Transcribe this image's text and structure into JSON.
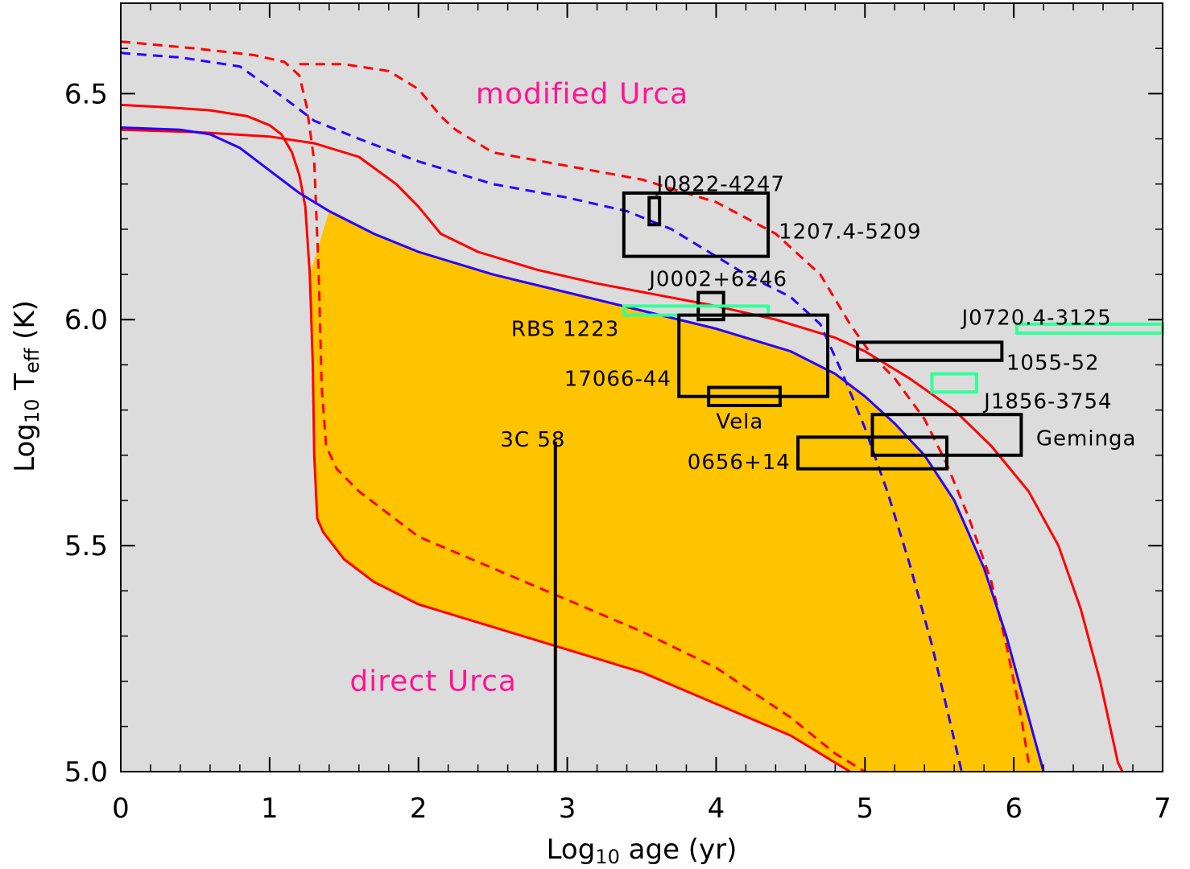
{
  "chart_data": {
    "type": "line",
    "xlabel": "Log10 age (yr)",
    "ylabel": "Log10 Teff (K)",
    "xlim": [
      0,
      7
    ],
    "ylim": [
      5.0,
      6.7
    ],
    "x_ticks": [
      0,
      1,
      2,
      3,
      4,
      5,
      6,
      7
    ],
    "y_ticks": [
      5.0,
      5.5,
      6.0,
      6.5
    ],
    "x_tick_labels": [
      "0",
      "1",
      "2",
      "3",
      "4",
      "5",
      "6",
      "7"
    ],
    "y_tick_labels": [
      "5.0",
      "5.5",
      "6.0",
      "6.5"
    ],
    "grid": false,
    "colors": {
      "background": "#dcdcdc",
      "fill": "#ffc400",
      "red": "#ff0000",
      "blue": "#2a00ff",
      "green": "#33ff99",
      "magenta": "#ff1493",
      "black": "#000000"
    },
    "annotations": [
      {
        "text": "modified Urca",
        "x": 3.1,
        "y": 6.5
      },
      {
        "text": "direct Urca",
        "x": 2.1,
        "y": 5.2
      }
    ],
    "curves": [
      {
        "color": "red",
        "style": "solid",
        "points": [
          [
            0,
            6.475
          ],
          [
            0.3,
            6.47
          ],
          [
            0.6,
            6.463
          ],
          [
            0.85,
            6.45
          ],
          [
            1.0,
            6.43
          ],
          [
            1.08,
            6.41
          ],
          [
            1.15,
            6.37
          ],
          [
            1.2,
            6.32
          ],
          [
            1.24,
            6.25
          ],
          [
            1.27,
            6.1
          ],
          [
            1.29,
            5.9
          ],
          [
            1.3,
            5.7
          ],
          [
            1.32,
            5.56
          ],
          [
            1.36,
            5.53
          ],
          [
            1.5,
            5.47
          ],
          [
            1.7,
            5.42
          ],
          [
            2.0,
            5.37
          ],
          [
            2.5,
            5.32
          ],
          [
            3.0,
            5.27
          ],
          [
            3.5,
            5.22
          ],
          [
            4.0,
            5.15
          ],
          [
            4.5,
            5.08
          ],
          [
            4.9,
            5.0
          ]
        ]
      },
      {
        "color": "red",
        "style": "dashed",
        "points": [
          [
            0,
            6.615
          ],
          [
            0.5,
            6.6
          ],
          [
            0.9,
            6.585
          ],
          [
            1.1,
            6.57
          ],
          [
            1.2,
            6.54
          ],
          [
            1.25,
            6.47
          ],
          [
            1.3,
            6.35
          ],
          [
            1.33,
            6.1
          ],
          [
            1.35,
            5.85
          ],
          [
            1.38,
            5.72
          ],
          [
            1.45,
            5.67
          ],
          [
            1.6,
            5.62
          ],
          [
            1.8,
            5.57
          ],
          [
            2.0,
            5.52
          ],
          [
            2.5,
            5.45
          ],
          [
            3.0,
            5.38
          ],
          [
            3.5,
            5.31
          ],
          [
            4.0,
            5.23
          ],
          [
            4.5,
            5.12
          ],
          [
            4.8,
            5.04
          ],
          [
            5.0,
            4.99
          ]
        ]
      },
      {
        "color": "red",
        "style": "solid",
        "points": [
          [
            0,
            6.42
          ],
          [
            0.5,
            6.415
          ],
          [
            1.0,
            6.405
          ],
          [
            1.3,
            6.39
          ],
          [
            1.6,
            6.36
          ],
          [
            1.85,
            6.3
          ],
          [
            2.0,
            6.25
          ],
          [
            2.15,
            6.19
          ],
          [
            2.4,
            6.15
          ],
          [
            2.8,
            6.11
          ],
          [
            3.2,
            6.08
          ],
          [
            3.6,
            6.055
          ],
          [
            4.0,
            6.03
          ],
          [
            4.4,
            6.0
          ],
          [
            4.8,
            5.96
          ],
          [
            5.0,
            5.93
          ],
          [
            5.3,
            5.87
          ],
          [
            5.6,
            5.8
          ],
          [
            5.85,
            5.72
          ],
          [
            6.1,
            5.62
          ],
          [
            6.3,
            5.5
          ],
          [
            6.45,
            5.36
          ],
          [
            6.58,
            5.2
          ],
          [
            6.7,
            5.02
          ],
          [
            6.73,
            4.98
          ]
        ]
      },
      {
        "color": "red",
        "style": "dashed",
        "points": [
          [
            1.2,
            6.565
          ],
          [
            1.5,
            6.565
          ],
          [
            1.8,
            6.55
          ],
          [
            2.0,
            6.51
          ],
          [
            2.15,
            6.45
          ],
          [
            2.25,
            6.42
          ],
          [
            2.5,
            6.37
          ],
          [
            3.0,
            6.34
          ],
          [
            3.5,
            6.31
          ],
          [
            4.0,
            6.26
          ],
          [
            4.4,
            6.19
          ],
          [
            4.7,
            6.1
          ],
          [
            4.9,
            5.99
          ],
          [
            5.05,
            5.92
          ],
          [
            5.2,
            5.87
          ],
          [
            5.4,
            5.78
          ],
          [
            5.55,
            5.68
          ],
          [
            5.7,
            5.56
          ],
          [
            5.85,
            5.42
          ],
          [
            5.95,
            5.28
          ],
          [
            6.05,
            5.12
          ],
          [
            6.1,
            5.02
          ]
        ]
      },
      {
        "color": "blue",
        "style": "solid",
        "points": [
          [
            0,
            6.425
          ],
          [
            0.4,
            6.42
          ],
          [
            0.6,
            6.41
          ],
          [
            0.8,
            6.38
          ],
          [
            1.0,
            6.33
          ],
          [
            1.2,
            6.28
          ],
          [
            1.4,
            6.24
          ],
          [
            1.7,
            6.19
          ],
          [
            2.0,
            6.15
          ],
          [
            2.5,
            6.1
          ],
          [
            3.0,
            6.06
          ],
          [
            3.5,
            6.02
          ],
          [
            4.0,
            5.98
          ],
          [
            4.5,
            5.93
          ],
          [
            4.8,
            5.88
          ],
          [
            5.0,
            5.83
          ],
          [
            5.2,
            5.77
          ],
          [
            5.4,
            5.7
          ],
          [
            5.6,
            5.6
          ],
          [
            5.8,
            5.45
          ],
          [
            5.95,
            5.3
          ],
          [
            6.1,
            5.12
          ],
          [
            6.2,
            5.0
          ]
        ]
      },
      {
        "color": "blue",
        "style": "dashed",
        "points": [
          [
            0,
            6.59
          ],
          [
            0.4,
            6.58
          ],
          [
            0.8,
            6.56
          ],
          [
            1.1,
            6.49
          ],
          [
            1.3,
            6.44
          ],
          [
            1.6,
            6.4
          ],
          [
            2.0,
            6.35
          ],
          [
            2.5,
            6.3
          ],
          [
            3.0,
            6.27
          ],
          [
            3.4,
            6.24
          ],
          [
            3.7,
            6.2
          ],
          [
            4.0,
            6.14
          ],
          [
            4.2,
            6.1
          ],
          [
            4.5,
            6.05
          ],
          [
            4.7,
            5.99
          ],
          [
            4.85,
            5.88
          ],
          [
            5.0,
            5.76
          ],
          [
            5.15,
            5.62
          ],
          [
            5.3,
            5.46
          ],
          [
            5.45,
            5.28
          ],
          [
            5.55,
            5.14
          ],
          [
            5.65,
            4.99
          ]
        ]
      }
    ],
    "shaded_region": {
      "x": [
        1.3,
        6.2
      ],
      "y": [
        5.0,
        6.28
      ]
    },
    "objects": [
      {
        "name": "J0822-4247",
        "type": "box",
        "color": "black",
        "x": [
          3.55,
          3.62
        ],
        "y": [
          6.21,
          6.27
        ]
      },
      {
        "name": "1207.4-5209",
        "type": "box",
        "color": "black",
        "x": [
          3.38,
          4.35
        ],
        "y": [
          6.14,
          6.28
        ]
      },
      {
        "name": "J0002+6246",
        "type": "box",
        "color": "black",
        "x": [
          3.88,
          4.05
        ],
        "y": [
          6.0,
          6.06
        ]
      },
      {
        "name": "RBS 1223",
        "type": "box",
        "color": "green",
        "x": [
          3.38,
          4.35
        ],
        "y": [
          6.01,
          6.03
        ]
      },
      {
        "name": "17066-44",
        "type": "box",
        "color": "black",
        "x": [
          3.75,
          4.75
        ],
        "y": [
          5.83,
          6.01
        ]
      },
      {
        "name": "Vela",
        "type": "box",
        "color": "black",
        "x": [
          3.95,
          4.43
        ],
        "y": [
          5.81,
          5.85
        ]
      },
      {
        "name": "J0720.4-3125",
        "type": "box",
        "color": "green",
        "x": [
          6.02,
          7.0
        ],
        "y": [
          5.97,
          5.99
        ]
      },
      {
        "name": "1055-52",
        "type": "box",
        "color": "black",
        "x": [
          4.95,
          5.92
        ],
        "y": [
          5.91,
          5.95
        ]
      },
      {
        "name": "J1856-3754",
        "type": "box",
        "color": "green",
        "x": [
          5.45,
          5.75
        ],
        "y": [
          5.84,
          5.88
        ]
      },
      {
        "name": "Geminga",
        "type": "box",
        "color": "black",
        "x": [
          5.05,
          6.05
        ],
        "y": [
          5.7,
          5.79
        ]
      },
      {
        "name": "0656+14",
        "type": "box",
        "color": "black",
        "x": [
          4.55,
          5.55
        ],
        "y": [
          5.67,
          5.74
        ]
      },
      {
        "name": "3C 58",
        "type": "upper_limit",
        "color": "black",
        "x": 2.92,
        "y": [
          4.98,
          5.73
        ]
      }
    ]
  },
  "text": {
    "xlabel_log": "Log",
    "xlabel_sub": "10",
    "xlabel_rest": " age (yr)",
    "ylabel_log": "Log",
    "ylabel_sub": "10",
    "ylabel_T": " T",
    "ylabel_sub2": "eff",
    "ylabel_rest": " (K)"
  }
}
